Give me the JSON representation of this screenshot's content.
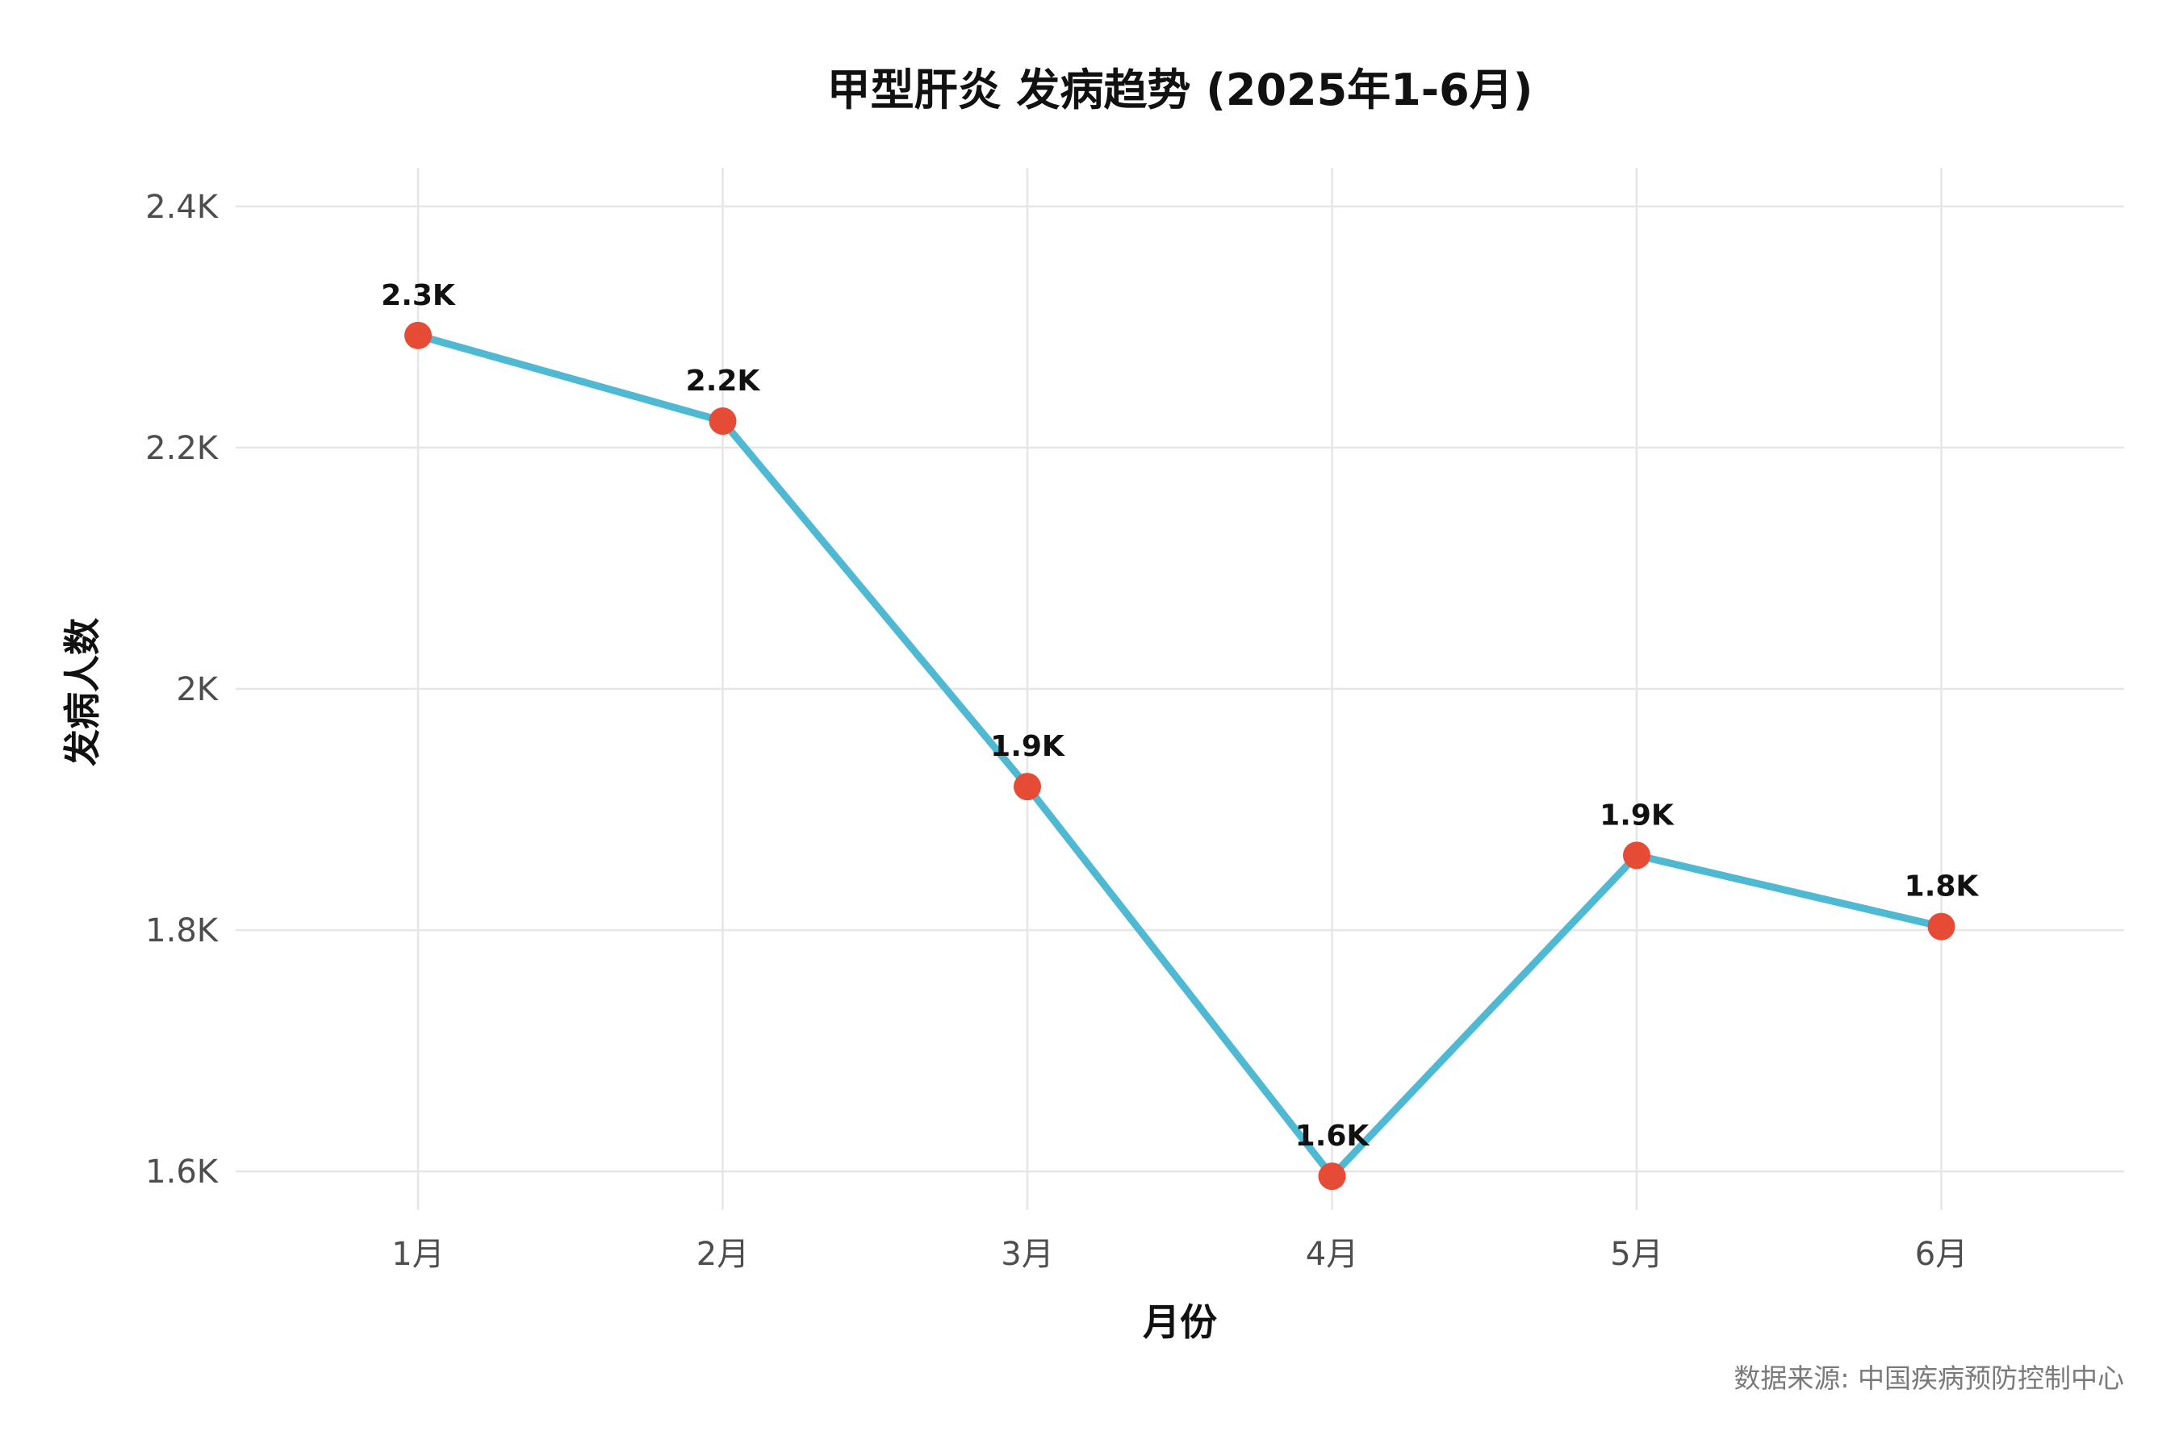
{
  "chart_data": {
    "type": "line",
    "title": "甲型肝炎 发病趋势 (2025年1-6月)",
    "xlabel": "月份",
    "ylabel": "发病人数",
    "caption": "数据来源: 中国疾病预防控制中心",
    "categories": [
      "1月",
      "2月",
      "3月",
      "4月",
      "5月",
      "6月"
    ],
    "values": [
      2293,
      2222,
      1919,
      1596,
      1862,
      1803
    ],
    "data_labels": [
      "2.3K",
      "2.2K",
      "1.9K",
      "1.6K",
      "1.9K",
      "1.8K"
    ],
    "ylim": [
      1568,
      2432
    ],
    "y_ticks": [
      1600,
      1800,
      2000,
      2200,
      2400
    ],
    "y_tick_labels": [
      "1.6K",
      "1.8K",
      "2K",
      "2.2K",
      "2.4K"
    ],
    "grid": true,
    "legend": "none",
    "colors": {
      "line": "#4fb9d3",
      "point": "#e64b35",
      "grid": "#e6e6e6"
    }
  }
}
